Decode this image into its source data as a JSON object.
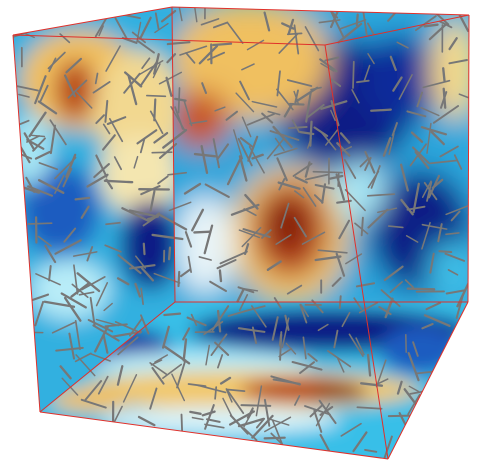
{
  "figure": {
    "kind": "3D cube volume rendering with vector glyph field",
    "colormap": {
      "name": "RdYlBu_r",
      "stops": [
        "#08147a",
        "#1a3fb0",
        "#1e86d6",
        "#38c4e8",
        "#a8e6f4",
        "#f5f0c0",
        "#f2c86a",
        "#e49a3a",
        "#c75a14",
        "#8a2310"
      ]
    },
    "edge_color": "#e0302a",
    "glyph_color": "#777777",
    "background": "#ffffff"
  }
}
